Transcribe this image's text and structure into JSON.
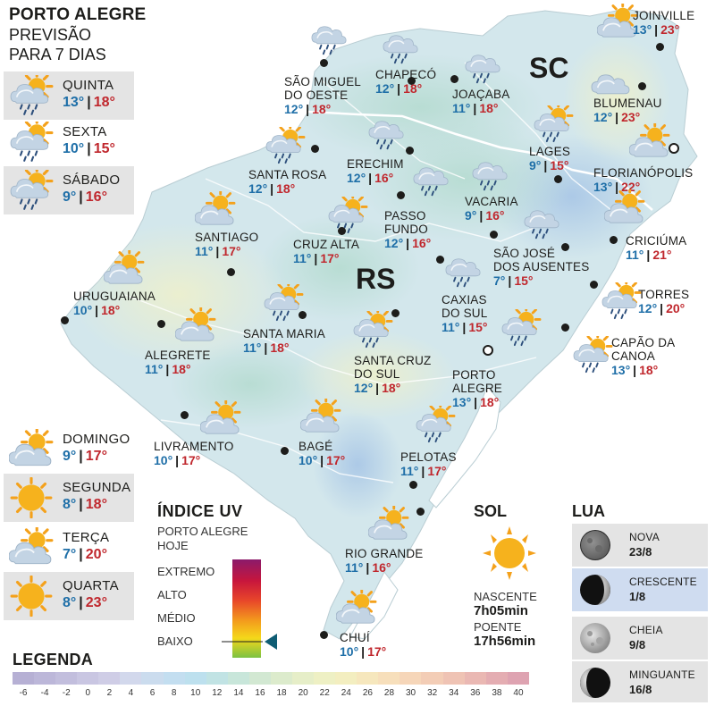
{
  "header": {
    "city": "PORTO ALEGRE",
    "subtitle_line1": "PREVISÃO",
    "subtitle_line2": "PARA 7 DIAS"
  },
  "forecast_days": [
    {
      "day": "QUINTA",
      "min": "13°",
      "max": "18°",
      "icon": "sun-cloud-rain-icon"
    },
    {
      "day": "SEXTA",
      "min": "10°",
      "max": "15°",
      "icon": "sun-cloud-rain-icon"
    },
    {
      "day": "SÁBADO",
      "min": "9°",
      "max": "16°",
      "icon": "sun-cloud-rain-icon"
    },
    {
      "day": "DOMINGO",
      "min": "9°",
      "max": "17°",
      "icon": "sun-cloud-icon"
    },
    {
      "day": "SEGUNDA",
      "min": "8°",
      "max": "18°",
      "icon": "sun-icon"
    },
    {
      "day": "TERÇA",
      "min": "7°",
      "max": "20°",
      "icon": "sun-cloud-icon"
    },
    {
      "day": "QUARTA",
      "min": "8°",
      "max": "23°",
      "icon": "sun-icon"
    }
  ],
  "states": {
    "rs": "RS",
    "sc": "SC"
  },
  "cities": [
    {
      "name": [
        "SÃO MIGUEL",
        "DO OESTE"
      ],
      "min": "12°",
      "max": "18°",
      "icon": "cloud-rain-icon"
    },
    {
      "name": [
        "CHAPECÓ"
      ],
      "min": "12°",
      "max": "18°",
      "icon": "cloud-rain-icon"
    },
    {
      "name": [
        "JOAÇABA"
      ],
      "min": "11°",
      "max": "18°",
      "icon": "cloud-rain-icon"
    },
    {
      "name": [
        "JOINVILLE"
      ],
      "min": "13°",
      "max": "23°",
      "icon": "sun-cloud-icon"
    },
    {
      "name": [
        "BLUMENAU"
      ],
      "min": "12°",
      "max": "23°",
      "icon": "cloud-icon"
    },
    {
      "name": [
        "LAGES"
      ],
      "min": "9°",
      "max": "15°",
      "icon": "sun-cloud-rain-icon"
    },
    {
      "name": [
        "FLORIANÓPOLIS"
      ],
      "min": "13°",
      "max": "22°",
      "icon": "sun-cloud-icon"
    },
    {
      "name": [
        "SANTA ROSA"
      ],
      "min": "12°",
      "max": "18°",
      "icon": "sun-cloud-rain-icon"
    },
    {
      "name": [
        "ERECHIM"
      ],
      "min": "12°",
      "max": "16°",
      "icon": "cloud-rain-icon"
    },
    {
      "name": [
        "VACARIA"
      ],
      "min": "9°",
      "max": "16°",
      "icon": "cloud-rain-icon"
    },
    {
      "name": [
        "PASSO",
        "FUNDO"
      ],
      "min": "12°",
      "max": "16°",
      "icon": "cloud-rain-icon"
    },
    {
      "name": [
        "SANTIAGO"
      ],
      "min": "11°",
      "max": "17°",
      "icon": "sun-cloud-icon"
    },
    {
      "name": [
        "CRUZ ALTA"
      ],
      "min": "11°",
      "max": "17°",
      "icon": "sun-cloud-rain-icon"
    },
    {
      "name": [
        "SÃO JOSÉ",
        "DOS AUSENTES"
      ],
      "min": "7°",
      "max": "15°",
      "icon": "cloud-rain-icon"
    },
    {
      "name": [
        "CRICIÚMA"
      ],
      "min": "11°",
      "max": "21°",
      "icon": "sun-cloud-icon"
    },
    {
      "name": [
        "URUGUAIANA"
      ],
      "min": "10°",
      "max": "18°",
      "icon": "sun-cloud-icon"
    },
    {
      "name": [
        "CAXIAS",
        "DO SUL"
      ],
      "min": "11°",
      "max": "15°",
      "icon": "cloud-rain-icon"
    },
    {
      "name": [
        "TORRES"
      ],
      "min": "12°",
      "max": "20°",
      "icon": "sun-cloud-rain-icon"
    },
    {
      "name": [
        "SANTA MARIA"
      ],
      "min": "11°",
      "max": "18°",
      "icon": "sun-cloud-rain-icon"
    },
    {
      "name": [
        "ALEGRETE"
      ],
      "min": "11°",
      "max": "18°",
      "icon": "sun-cloud-icon"
    },
    {
      "name": [
        "SANTA CRUZ",
        "DO SUL"
      ],
      "min": "12°",
      "max": "18°",
      "icon": "sun-cloud-rain-icon"
    },
    {
      "name": [
        "CAPÃO DA",
        "CANOA"
      ],
      "min": "13°",
      "max": "18°",
      "icon": "sun-cloud-rain-icon"
    },
    {
      "name": [
        "PORTO",
        "ALEGRE"
      ],
      "min": "13°",
      "max": "18°",
      "icon": "sun-cloud-rain-icon"
    },
    {
      "name": [
        "LIVRAMENTO"
      ],
      "min": "10°",
      "max": "17°",
      "icon": "sun-cloud-icon"
    },
    {
      "name": [
        "BAGÉ"
      ],
      "min": "10°",
      "max": "17°",
      "icon": "sun-cloud-icon"
    },
    {
      "name": [
        "PELOTAS"
      ],
      "min": "11°",
      "max": "17°",
      "icon": "sun-cloud-rain-icon"
    },
    {
      "name": [
        "RIO GRANDE"
      ],
      "min": "11°",
      "max": "16°",
      "icon": "sun-cloud-icon"
    },
    {
      "name": [
        "CHUÍ"
      ],
      "min": "10°",
      "max": "17°",
      "icon": "sun-cloud-icon"
    }
  ],
  "uv_index": {
    "title": "ÍNDICE UV",
    "subtitle_line1": "PORTO ALEGRE",
    "subtitle_line2": "HOJE",
    "levels": [
      "EXTREMO",
      "ALTO",
      "MÉDIO",
      "BAIXO"
    ],
    "current_level": "BAIXO"
  },
  "sun": {
    "title": "SOL",
    "sunrise_label": "NASCENTE",
    "sunrise": "7h05min",
    "sunset_label": "POENTE",
    "sunset": "17h56min"
  },
  "moon": {
    "title": "LUA",
    "phases": [
      {
        "name": "NOVA",
        "date": "23/8",
        "icon": "moon-new-icon"
      },
      {
        "name": "CRESCENTE",
        "date": "1/8",
        "icon": "moon-crescent-icon",
        "active": true
      },
      {
        "name": "CHEIA",
        "date": "9/8",
        "icon": "moon-full-icon"
      },
      {
        "name": "MINGUANTE",
        "date": "16/8",
        "icon": "moon-waning-icon"
      }
    ]
  },
  "legend": {
    "title": "LEGENDA",
    "ticks": [
      "-6",
      "-4",
      "-2",
      "0",
      "2",
      "4",
      "6",
      "8",
      "10",
      "12",
      "14",
      "16",
      "18",
      "20",
      "22",
      "24",
      "26",
      "28",
      "30",
      "32",
      "34",
      "36",
      "38",
      "40"
    ],
    "colors": [
      "#b6b0d4",
      "#bcb7d9",
      "#c2bedd",
      "#c9c6e2",
      "#cfcde6",
      "#d2d8ec",
      "#cbdcee",
      "#c3def0",
      "#bde0ee",
      "#c1e3e4",
      "#c8e6da",
      "#d2e8d2",
      "#dcebcc",
      "#e6eec8",
      "#eef0c4",
      "#f3eec0",
      "#f6e7bd",
      "#f7dfbb",
      "#f6d6b9",
      "#f3cdb6",
      "#efc3b4",
      "#eab8b3",
      "#e4adb2",
      "#dea3b1"
    ]
  },
  "colors": {
    "min_temp": "#1f6fa8",
    "max_temp": "#c0272d",
    "map_land": "#d6e9ee",
    "card_bg": "#e4e4e4"
  }
}
